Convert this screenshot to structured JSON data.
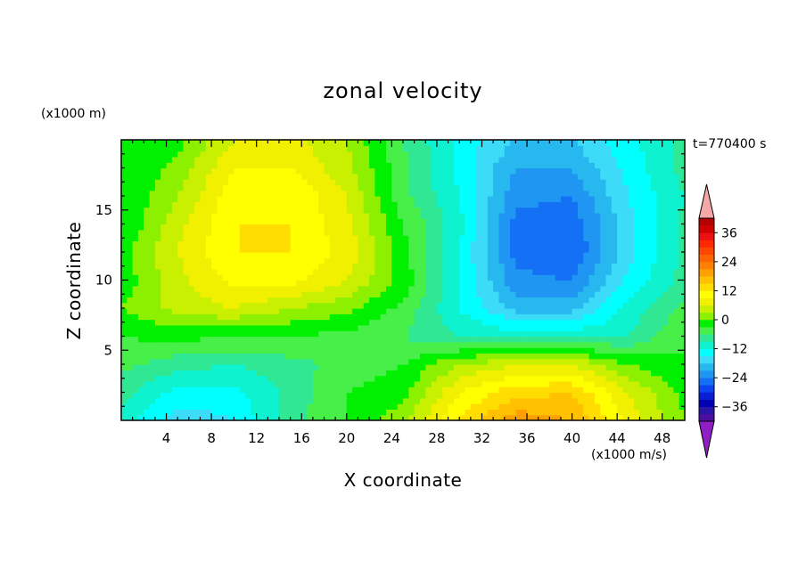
{
  "chart_data": {
    "type": "heatmap",
    "title": "zonal velocity",
    "xlabel": "X coordinate",
    "ylabel": "Z coordinate",
    "x_unit_label": "(x1000 m/s)",
    "z_unit_label": "(x1000 m)",
    "timestamp": "t=770400 s",
    "xlim": [
      0,
      50
    ],
    "ylim": [
      0,
      20
    ],
    "x_ticks": [
      4,
      8,
      12,
      16,
      20,
      24,
      28,
      32,
      36,
      40,
      44,
      48
    ],
    "y_ticks": [
      5,
      10,
      15
    ],
    "colorbar": {
      "levels": [
        -42,
        -39,
        -36,
        -33,
        -30,
        -27,
        -24,
        -21,
        -18,
        -15,
        -12,
        -9,
        -6,
        -3,
        0,
        3,
        6,
        9,
        12,
        15,
        18,
        21,
        24,
        27,
        30,
        33,
        36,
        39,
        42
      ],
      "tick_labels": [
        "36",
        "24",
        "12",
        "0",
        "-12",
        "-24",
        "-36"
      ],
      "tick_values": [
        36,
        24,
        12,
        0,
        -12,
        -24,
        -36
      ],
      "extend": "both",
      "under_color": "#8f1fc2",
      "over_color": "#f5a8a8",
      "colors": [
        "#4b0fa3",
        "#2a15a6",
        "#0000b4",
        "#0a1ed6",
        "#0a45f0",
        "#1470f5",
        "#1e96f2",
        "#28b8f0",
        "#3cdcf8",
        "#00ffff",
        "#0ef2cf",
        "#30e893",
        "#48ef48",
        "#00f000",
        "#8cf000",
        "#c8f000",
        "#f0f000",
        "#ffff00",
        "#ffdd00",
        "#ffc000",
        "#ffa000",
        "#ff8000",
        "#ff6400",
        "#ff4600",
        "#ff2800",
        "#ec1010",
        "#d00000",
        "#b40000"
      ]
    },
    "grid_x": [
      0,
      5,
      10,
      15,
      20,
      25,
      30,
      35,
      40,
      45,
      50
    ],
    "grid_z": [
      0,
      2,
      4,
      6,
      8,
      10,
      12,
      14,
      16,
      18,
      20
    ],
    "values": [
      [
        -10,
        -17,
        -15,
        -7,
        -3,
        2,
        12,
        20,
        18,
        8,
        0
      ],
      [
        -8,
        -13,
        -13,
        -8,
        -3,
        -1,
        9,
        14,
        15,
        6,
        -1
      ],
      [
        -5,
        -8,
        -9,
        -7,
        -5,
        -3,
        3,
        6,
        6,
        0,
        -3
      ],
      [
        -3,
        -2,
        -3,
        -3,
        -4,
        -6,
        -9,
        -10,
        -10,
        -9,
        -3
      ],
      [
        0,
        4,
        6,
        3,
        1,
        -4,
        -12,
        -19,
        -19,
        -11,
        -5
      ],
      [
        -2,
        5,
        10,
        10,
        6,
        -1,
        -12,
        -23,
        -24,
        -14,
        -8
      ],
      [
        -1,
        6,
        12,
        12,
        8,
        -2,
        -12,
        -25,
        -27,
        -16,
        -8
      ],
      [
        -3,
        5,
        12,
        12,
        7,
        -3,
        -11,
        -25,
        -26,
        -16,
        -8
      ],
      [
        -3,
        3,
        11,
        12,
        6,
        -5,
        -12,
        -23,
        -24,
        -15,
        -9
      ],
      [
        -3,
        1,
        9,
        9,
        4,
        -5,
        -13,
        -21,
        -21,
        -14,
        -8
      ],
      [
        -3,
        -1,
        6,
        7,
        3,
        -6,
        -13,
        -18,
        -18,
        -13,
        -8
      ]
    ]
  }
}
